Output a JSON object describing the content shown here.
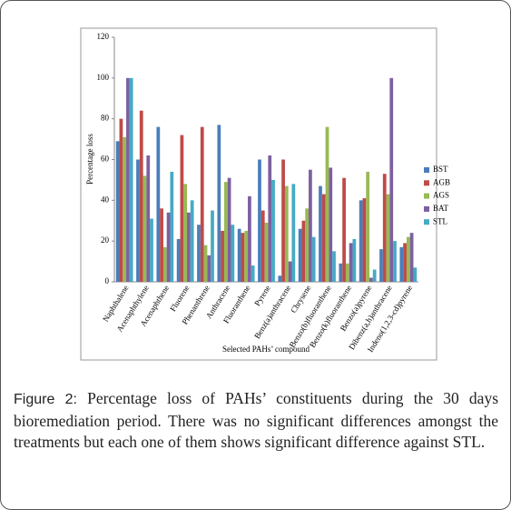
{
  "chart_data": {
    "type": "bar",
    "y_label": "Percentage loss",
    "x_label": "Selected PAHs’ compound",
    "categories": [
      "Naphthalene",
      "Acenaphthylene",
      "Acenaphthene",
      "Fluorene",
      "Phenanthrene",
      "Anthracene",
      "Fluoranthene",
      "Pyrene",
      "Benz(a)anthracene",
      "Chrysene",
      "Benzo(b)fluoranthene",
      "Benzo(k)fluoranthene",
      "Benzo(a)pyrene",
      "Dibenz(a,h)anthracene",
      "Indeno(1,2,3-cd)pyrene"
    ],
    "series": [
      {
        "name": "BST",
        "color": "#4a7ebb",
        "values": [
          69,
          60,
          76,
          21,
          28,
          77,
          26,
          60,
          3,
          26,
          47,
          9,
          40,
          16,
          17
        ]
      },
      {
        "name": "AGB",
        "color": "#be4b48",
        "values": [
          80,
          84,
          36,
          72,
          76,
          25,
          24,
          35,
          60,
          30,
          43,
          51,
          41,
          53,
          19
        ]
      },
      {
        "name": "AGS",
        "color": "#98b954",
        "values": [
          71,
          52,
          17,
          48,
          18,
          49,
          25,
          29,
          47,
          36,
          76,
          9,
          54,
          43,
          22
        ]
      },
      {
        "name": "BAT",
        "color": "#7d60a0",
        "values": [
          100,
          62,
          34,
          34,
          13,
          51,
          42,
          62,
          10,
          55,
          56,
          19,
          2,
          100,
          24
        ]
      },
      {
        "name": "STL",
        "color": "#46aac5",
        "values": [
          100,
          31,
          54,
          40,
          35,
          28,
          8,
          50,
          48,
          22,
          15,
          21,
          6,
          20,
          7
        ]
      }
    ],
    "ylim": [
      0,
      120
    ],
    "yticks": [
      0,
      20,
      40,
      60,
      80,
      100,
      120
    ],
    "grid": false,
    "legend": "right"
  },
  "caption": {
    "label": "Figure 2:",
    "text": "Percentage loss of PAHs’ constituents during the 30 days bioremediation period. There was no significant differences amongst the treatments but each one of them shows significant difference against STL."
  }
}
